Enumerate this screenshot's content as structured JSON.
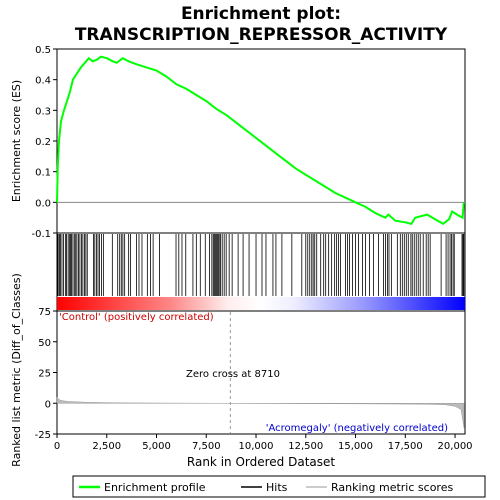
{
  "title_line1": "Enrichment plot:",
  "title_line2": "TRANSCRIPTION_REPRESSOR_ACTIVITY",
  "top_ylabel": "Enrichment score (ES)",
  "bottom_ylabel": "Ranked list metric (Diff_of_Classes)",
  "xlabel": "Rank in Ordered Dataset",
  "label_positive": "'Control' (positively correlated)",
  "label_negative": "'Acromegaly' (negatively correlated)",
  "zero_cross_label": "Zero cross at 8710",
  "legend": {
    "enrichment": "Enrichment profile",
    "hits": "Hits",
    "metric": "Ranking metric scores"
  },
  "colors": {
    "enrichment_line": "#00ff00",
    "hits": "#000000",
    "metric_line": "#bbbbbb",
    "positive_label": "#cc0000",
    "negative_label": "#0000cc"
  },
  "chart_data": {
    "type": "line",
    "x_range": [
      0,
      20500
    ],
    "es_ylim": [
      -0.1,
      0.5
    ],
    "es_yticks": [
      -0.1,
      0.0,
      0.1,
      0.2,
      0.3,
      0.4,
      0.5
    ],
    "metric_ylim": [
      -25,
      75
    ],
    "metric_yticks": [
      -25,
      0,
      25,
      50,
      75
    ],
    "xticks": [
      0,
      2500,
      5000,
      7500,
      10000,
      12500,
      15000,
      17500,
      20000
    ],
    "zero_cross": 8710,
    "es_curve": [
      [
        0,
        0.0
      ],
      [
        40,
        0.12
      ],
      [
        100,
        0.2
      ],
      [
        200,
        0.265
      ],
      [
        350,
        0.3
      ],
      [
        500,
        0.33
      ],
      [
        650,
        0.36
      ],
      [
        800,
        0.4
      ],
      [
        1000,
        0.42
      ],
      [
        1200,
        0.44
      ],
      [
        1400,
        0.455
      ],
      [
        1600,
        0.47
      ],
      [
        1800,
        0.46
      ],
      [
        2000,
        0.465
      ],
      [
        2200,
        0.475
      ],
      [
        2500,
        0.47
      ],
      [
        2800,
        0.46
      ],
      [
        3000,
        0.455
      ],
      [
        3300,
        0.47
      ],
      [
        3600,
        0.46
      ],
      [
        4000,
        0.45
      ],
      [
        4500,
        0.44
      ],
      [
        5000,
        0.43
      ],
      [
        5500,
        0.41
      ],
      [
        6000,
        0.385
      ],
      [
        6500,
        0.37
      ],
      [
        7000,
        0.35
      ],
      [
        7500,
        0.33
      ],
      [
        8000,
        0.305
      ],
      [
        8500,
        0.285
      ],
      [
        9000,
        0.26
      ],
      [
        10000,
        0.21
      ],
      [
        11000,
        0.16
      ],
      [
        12000,
        0.11
      ],
      [
        13000,
        0.07
      ],
      [
        14000,
        0.03
      ],
      [
        15000,
        0.0
      ],
      [
        15500,
        -0.015
      ],
      [
        16000,
        -0.035
      ],
      [
        16500,
        -0.05
      ],
      [
        16650,
        -0.04
      ],
      [
        17000,
        -0.06
      ],
      [
        17500,
        -0.065
      ],
      [
        17800,
        -0.07
      ],
      [
        18000,
        -0.05
      ],
      [
        18300,
        -0.045
      ],
      [
        18600,
        -0.04
      ],
      [
        19000,
        -0.055
      ],
      [
        19400,
        -0.07
      ],
      [
        19700,
        -0.055
      ],
      [
        19850,
        -0.03
      ],
      [
        20100,
        -0.04
      ],
      [
        20380,
        -0.05
      ],
      [
        20440,
        0.0
      ]
    ],
    "metric_curve": [
      [
        0,
        5
      ],
      [
        150,
        2.5
      ],
      [
        500,
        1.5
      ],
      [
        1500,
        0.8
      ],
      [
        3000,
        0.4
      ],
      [
        6000,
        0.15
      ],
      [
        8710,
        0.0
      ],
      [
        12000,
        -0.3
      ],
      [
        16000,
        -0.5
      ],
      [
        18500,
        -0.8
      ],
      [
        19500,
        -1.2
      ],
      [
        20000,
        -2.5
      ],
      [
        20300,
        -5
      ],
      [
        20450,
        -20
      ]
    ],
    "hit_ranks": [
      30,
      60,
      120,
      170,
      250,
      330,
      420,
      480,
      560,
      620,
      680,
      730,
      800,
      870,
      940,
      1000,
      1080,
      1150,
      1230,
      1300,
      1380,
      1450,
      1520,
      1830,
      1900,
      1990,
      2060,
      2140,
      2240,
      2330,
      2780,
      3050,
      3150,
      3230,
      3310,
      3400,
      3600,
      3690,
      4000,
      4120,
      4270,
      4540,
      4700,
      4830,
      5150,
      5980,
      6120,
      6280,
      6470,
      6830,
      7000,
      7200,
      7450,
      7660,
      7780,
      7850,
      7900,
      7950,
      8000,
      8050,
      8100,
      8150,
      8220,
      8300,
      8400,
      8500,
      8650,
      8800,
      9100,
      9350,
      9650,
      10000,
      10300,
      10500,
      10850,
      11000,
      11300,
      11800,
      12300,
      12500,
      12600,
      12700,
      12800,
      12870,
      12950,
      13050,
      13250,
      13400,
      13500,
      13650,
      13800,
      13950,
      14050,
      14150,
      14250,
      14500,
      14600,
      14700,
      14850,
      15000,
      15150,
      15350,
      15500,
      15700,
      15900,
      16150,
      16400,
      16500,
      16600,
      16680,
      16800,
      17100,
      17250,
      17350,
      17450,
      17550,
      17650,
      17780,
      17850,
      17950,
      18050,
      18150,
      18250,
      18400,
      18550,
      18650,
      18750,
      19300,
      19550,
      19650,
      19750,
      19820,
      19900,
      19960,
      20350,
      20400,
      20440
    ]
  }
}
